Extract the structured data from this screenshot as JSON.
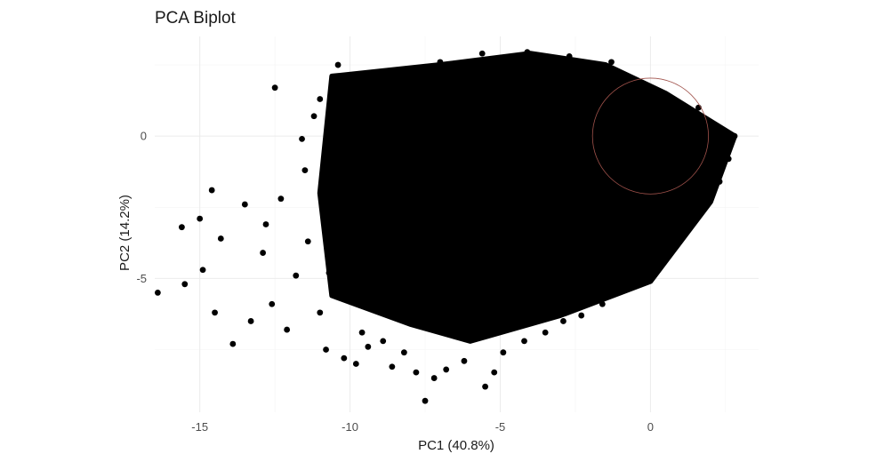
{
  "chart_data": {
    "type": "scatter",
    "title": "PCA Biplot",
    "xlabel": "PC1 (40.8%)",
    "ylabel": "PC2 (14.2%)",
    "xlim": [
      -16.5,
      3.6
    ],
    "ylim": [
      -9.7,
      3.5
    ],
    "x_ticks": [
      -15,
      -10,
      -5,
      0
    ],
    "x_tick_labels": [
      "-15",
      "-10",
      "-5",
      "0"
    ],
    "y_ticks": [
      0,
      -5
    ],
    "y_tick_labels": [
      "0",
      "-5"
    ],
    "grid": true,
    "point_color": "#000000",
    "circle": {
      "center": [
        0,
        0
      ],
      "radius": 1.93,
      "color": "#a0524b"
    },
    "dense_region": [
      [
        -10.6,
        2.1
      ],
      [
        -7,
        2.5
      ],
      [
        -4,
        2.9
      ],
      [
        -1.5,
        2.5
      ],
      [
        0.5,
        1.5
      ],
      [
        2.8,
        0
      ],
      [
        2,
        -2.3
      ],
      [
        0,
        -5.1
      ],
      [
        -3,
        -6.3
      ],
      [
        -6,
        -7.2
      ],
      [
        -8,
        -6.6
      ],
      [
        -10.6,
        -5.6
      ],
      [
        -11,
        -2
      ]
    ],
    "points": [
      {
        "x": -16.4,
        "y": -5.5
      },
      {
        "x": -15.6,
        "y": -3.2
      },
      {
        "x": -15.5,
        "y": -5.2
      },
      {
        "x": -15.0,
        "y": -2.9
      },
      {
        "x": -14.9,
        "y": -4.7
      },
      {
        "x": -14.5,
        "y": -6.2
      },
      {
        "x": -13.9,
        "y": -7.3
      },
      {
        "x": -14.6,
        "y": -1.9
      },
      {
        "x": -14.3,
        "y": -3.6
      },
      {
        "x": -13.5,
        "y": -2.4
      },
      {
        "x": -13.3,
        "y": -6.5
      },
      {
        "x": -12.6,
        "y": -5.9
      },
      {
        "x": -12.9,
        "y": -4.1
      },
      {
        "x": -12.8,
        "y": -3.1
      },
      {
        "x": -12.5,
        "y": 1.7
      },
      {
        "x": -12.3,
        "y": -2.2
      },
      {
        "x": -12.1,
        "y": -6.8
      },
      {
        "x": -11.8,
        "y": -4.9
      },
      {
        "x": -11.6,
        "y": -0.1
      },
      {
        "x": -11.5,
        "y": -1.2
      },
      {
        "x": -11.4,
        "y": -3.7
      },
      {
        "x": -11.2,
        "y": 0.7
      },
      {
        "x": -11.0,
        "y": -6.2
      },
      {
        "x": -10.8,
        "y": -7.5
      },
      {
        "x": -10.6,
        "y": -2.8
      },
      {
        "x": -11.0,
        "y": 1.3
      },
      {
        "x": -10.4,
        "y": 2.5
      },
      {
        "x": -10.2,
        "y": -7.8
      },
      {
        "x": -10.0,
        "y": 0.4
      },
      {
        "x": -9.8,
        "y": -8.0
      },
      {
        "x": -9.6,
        "y": -6.9
      },
      {
        "x": -9.4,
        "y": -7.4
      },
      {
        "x": -8.9,
        "y": -7.2
      },
      {
        "x": -8.6,
        "y": -8.1
      },
      {
        "x": -8.2,
        "y": -7.6
      },
      {
        "x": -7.8,
        "y": -8.3
      },
      {
        "x": -7.5,
        "y": -9.3
      },
      {
        "x": -7.2,
        "y": -8.5
      },
      {
        "x": -6.8,
        "y": -8.2
      },
      {
        "x": -6.2,
        "y": -7.9
      },
      {
        "x": -5.5,
        "y": -8.8
      },
      {
        "x": -5.2,
        "y": -8.3
      },
      {
        "x": -4.9,
        "y": -7.6
      },
      {
        "x": -4.2,
        "y": -7.2
      },
      {
        "x": -3.5,
        "y": -6.9
      },
      {
        "x": -2.9,
        "y": -6.5
      },
      {
        "x": -2.3,
        "y": -6.3
      },
      {
        "x": -1.6,
        "y": -5.9
      },
      {
        "x": -0.9,
        "y": -5.4
      },
      {
        "x": 0.3,
        "y": -4.3
      },
      {
        "x": 1.2,
        "y": -3.2
      },
      {
        "x": 2.0,
        "y": -2.1
      },
      {
        "x": 2.6,
        "y": -0.8
      },
      {
        "x": 2.8,
        "y": 0.0
      },
      {
        "x": 1.6,
        "y": 1.0
      },
      {
        "x": -1.3,
        "y": 2.6
      },
      {
        "x": -2.7,
        "y": 2.8
      },
      {
        "x": -4.1,
        "y": 2.95
      },
      {
        "x": -5.6,
        "y": 2.9
      },
      {
        "x": -7.0,
        "y": 2.6
      },
      {
        "x": -8.4,
        "y": 2.3
      },
      {
        "x": -9.3,
        "y": 1.9
      },
      {
        "x": -9.8,
        "y": 1.1
      },
      {
        "x": -10.8,
        "y": -0.6
      },
      {
        "x": -10.7,
        "y": -4.8
      },
      {
        "x": -9.2,
        "y": -6.1
      },
      {
        "x": -0.1,
        "y": -4.8
      },
      {
        "x": 1.5,
        "y": -2.9
      },
      {
        "x": 2.3,
        "y": -1.6
      }
    ]
  }
}
